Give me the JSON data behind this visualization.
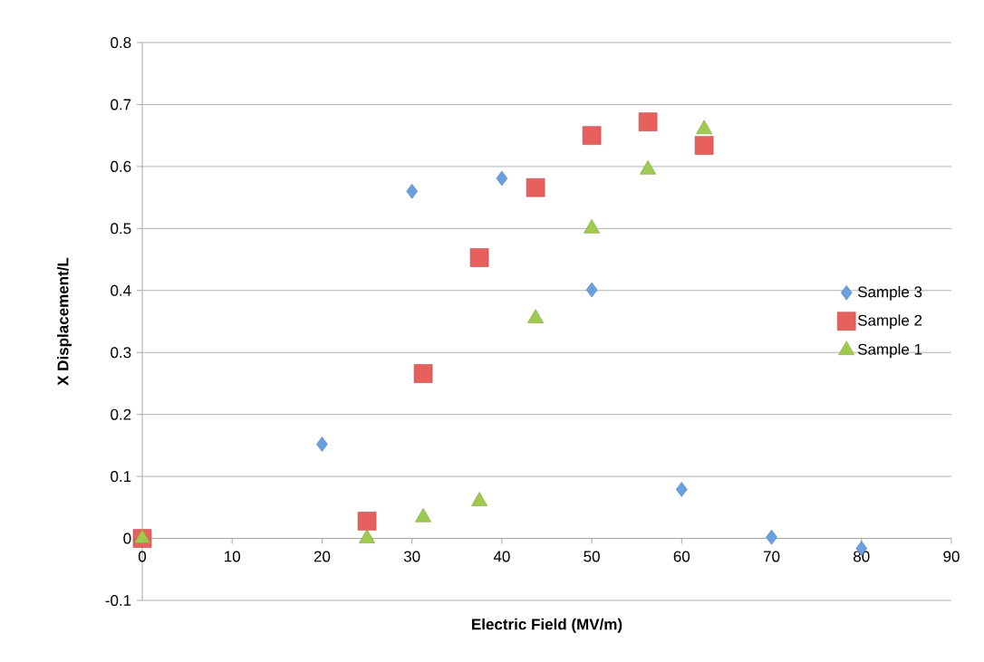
{
  "chart_data": {
    "type": "scatter",
    "xlabel": "Electric Field (MV/m)",
    "ylabel": "X Displacement/L",
    "xlim": [
      0,
      90
    ],
    "xticks": [
      0,
      10,
      20,
      30,
      40,
      50,
      60,
      70,
      80,
      90
    ],
    "ylim": [
      -0.1,
      0.8
    ],
    "yticks": [
      -0.1,
      0,
      0.1,
      0.2,
      0.3,
      0.4,
      0.5,
      0.6,
      0.7,
      0.8
    ],
    "grid": "y",
    "legend": "right",
    "series": [
      {
        "name": "Sample 3",
        "color": "#6a9fe0",
        "marker": "diamond",
        "x": [
          20,
          30,
          40,
          50,
          60,
          70,
          80
        ],
        "values": [
          0.152,
          0.56,
          0.581,
          0.401,
          0.079,
          0.002,
          -0.016
        ]
      },
      {
        "name": "Sample 2",
        "color": "#e8605e",
        "marker": "square",
        "x": [
          0,
          25,
          31.25,
          37.5,
          43.75,
          50,
          56.25,
          62.5
        ],
        "values": [
          0,
          0.028,
          0.266,
          0.453,
          0.566,
          0.65,
          0.672,
          0.634
        ]
      },
      {
        "name": "Sample 1",
        "color": "#9fca4f",
        "marker": "triangle",
        "x": [
          0,
          25,
          31.25,
          37.5,
          43.75,
          50,
          56.25,
          62.5
        ],
        "values": [
          0,
          0,
          0.034,
          0.06,
          0.355,
          0.5,
          0.595,
          0.66
        ]
      }
    ]
  }
}
